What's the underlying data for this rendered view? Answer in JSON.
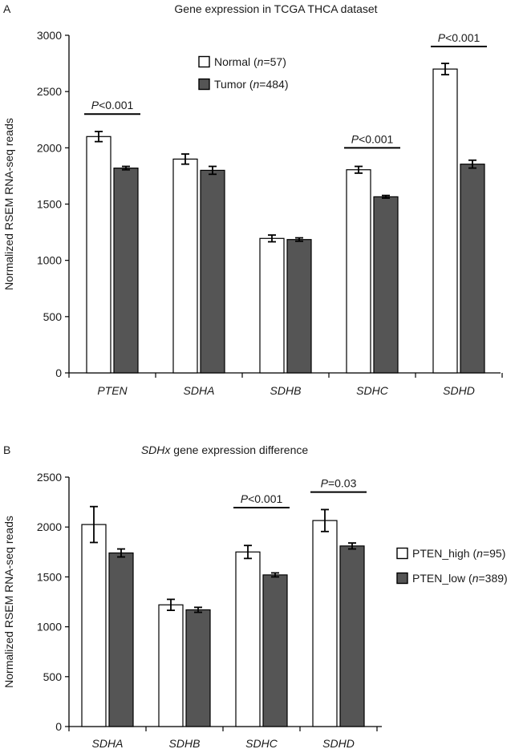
{
  "chart_data": [
    {
      "panel": "A",
      "type": "bar",
      "title": "Gene expression in TCGA THCA dataset",
      "ylabel": "Normalized RSEM RNA-seq reads",
      "xlabel": "",
      "ylim": [
        0,
        3000
      ],
      "yticks": [
        0,
        500,
        1000,
        1500,
        2000,
        2500,
        3000
      ],
      "categories": [
        "PTEN",
        "SDHA",
        "SDHB",
        "SDHC",
        "SDHD"
      ],
      "series": [
        {
          "name": "Normal (n=57)",
          "name_parts": [
            "Normal (",
            "n",
            "=57)"
          ],
          "color": "#ffffff",
          "values": [
            2100,
            1900,
            1195,
            1805,
            2700
          ],
          "errors": [
            45,
            45,
            30,
            30,
            50
          ]
        },
        {
          "name": "Tumor (n=484)",
          "name_parts": [
            "Tumor (",
            "n",
            "=484)"
          ],
          "color": "#555555",
          "values": [
            1820,
            1800,
            1185,
            1565,
            1855
          ],
          "errors": [
            15,
            35,
            15,
            12,
            35
          ]
        }
      ],
      "legend_position": "top-center",
      "annotations": [
        {
          "text": "P<0.001",
          "parts": [
            "P",
            "<0.001"
          ],
          "category": "PTEN",
          "y": 2300
        },
        {
          "text": "P<0.001",
          "parts": [
            "P",
            "<0.001"
          ],
          "category": "SDHC",
          "y": 2000
        },
        {
          "text": "P<0.001",
          "parts": [
            "P",
            "<0.001"
          ],
          "category": "SDHD",
          "y": 2900
        }
      ]
    },
    {
      "panel": "B",
      "type": "bar",
      "title": "SDHx gene expression difference",
      "title_parts": [
        "SDHx",
        " gene expression difference"
      ],
      "ylabel": "Normalized RSEM RNA-seq reads",
      "xlabel": "",
      "ylim": [
        0,
        2500
      ],
      "yticks": [
        0,
        500,
        1000,
        1500,
        2000,
        2500
      ],
      "categories": [
        "SDHA",
        "SDHB",
        "SDHC",
        "SDHD"
      ],
      "series": [
        {
          "name": "PTEN_high (n=95)",
          "name_parts": [
            "PTEN_high (",
            "n",
            "=95)"
          ],
          "color": "#ffffff",
          "values": [
            2025,
            1220,
            1750,
            2065
          ],
          "errors": [
            180,
            55,
            65,
            110
          ]
        },
        {
          "name": "PTEN_low (n=389)",
          "name_parts": [
            "PTEN_low (",
            "n",
            "=389)"
          ],
          "color": "#555555",
          "values": [
            1740,
            1170,
            1520,
            1810
          ],
          "errors": [
            40,
            25,
            20,
            30
          ]
        }
      ],
      "legend_position": "right",
      "annotations": [
        {
          "text": "P<0.001",
          "parts": [
            "P",
            "<0.001"
          ],
          "category": "SDHC",
          "y": 2195
        },
        {
          "text": "P=0.03",
          "parts": [
            "P",
            "=0.03"
          ],
          "category": "SDHD",
          "y": 2350
        }
      ]
    }
  ]
}
